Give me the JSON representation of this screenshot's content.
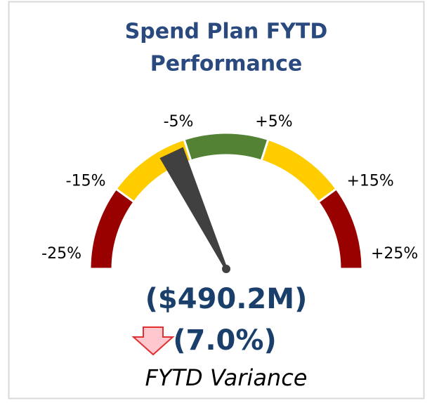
{
  "chart_data": {
    "type": "gauge",
    "title": "Spend Plan FYTD Performance",
    "title_lines": [
      "Spend Plan FYTD",
      "Performance"
    ],
    "range": [
      -25,
      25
    ],
    "ticks": [
      {
        "value": -25,
        "label": "-25%"
      },
      {
        "value": -15,
        "label": "-15%"
      },
      {
        "value": -5,
        "label": "-5%"
      },
      {
        "value": 5,
        "label": "+5%"
      },
      {
        "value": 15,
        "label": "+15%"
      },
      {
        "value": 25,
        "label": "+25%"
      }
    ],
    "bands": [
      {
        "from": -25,
        "to": -15,
        "color": "#990000"
      },
      {
        "from": -15,
        "to": -5,
        "color": "#ffcc00"
      },
      {
        "from": -5,
        "to": 5,
        "color": "#548235"
      },
      {
        "from": 5,
        "to": 15,
        "color": "#ffcc00"
      },
      {
        "from": 15,
        "to": 25,
        "color": "#990000"
      }
    ],
    "needle": {
      "value": -7.0,
      "label": "(7.0%)",
      "color": "#404040"
    },
    "amount_label": "($490.2M)",
    "caption": "FYTD Variance"
  }
}
